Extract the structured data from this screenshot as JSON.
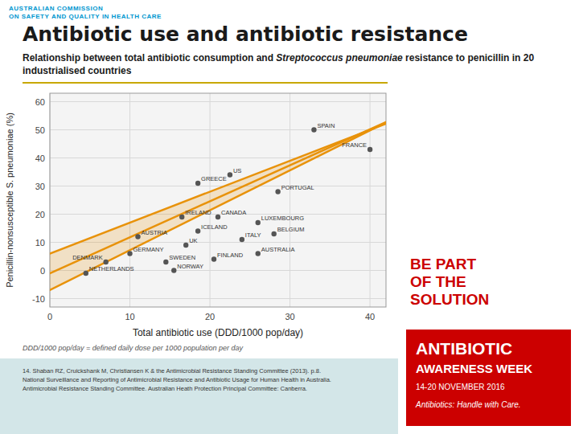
{
  "chart_data": {
    "type": "scatter",
    "title": "Antibiotic use and antibiotic resistance",
    "subtitle": [
      "Relationship between total antibiotic consumption and ",
      "Streptococcus pneumoniae",
      " resistance to penicillin in 20 industrialised countries"
    ],
    "xlabel": "Total antibiotic use (DDD/1000 pop/day)",
    "ylabel": "Penicillin-nonsusceptible S. pneumoniae (%)",
    "xlim": [
      0,
      42
    ],
    "ylim": [
      -13,
      63
    ],
    "xticks": [
      0,
      10,
      20,
      30,
      40
    ],
    "yticks": [
      -10,
      0,
      10,
      20,
      30,
      40,
      50,
      60
    ],
    "grid": true,
    "series": [
      {
        "type": "scatter",
        "color": "#555555",
        "x": [
          4.5,
          7.0,
          10.0,
          11.0,
          14.5,
          15.5,
          17.0,
          16.5,
          18.5,
          20.5,
          21.0,
          18.5,
          22.5,
          24.0,
          26.0,
          26.0,
          28.0,
          28.5,
          33.0,
          40.0
        ],
        "values": [
          -1,
          3,
          6,
          12,
          3,
          0,
          9,
          19,
          14,
          4,
          19,
          31,
          34,
          11,
          17,
          6,
          13,
          28,
          50,
          43
        ],
        "labels": [
          "NETHERLANDS",
          "DENMARK",
          "GERMANY",
          "AUSTRIA",
          "SWEDEN",
          "NORWAY",
          "UK",
          "IRELAND",
          "ICELAND",
          "FINLAND",
          "CANADA",
          "GREECE",
          "US",
          "ITALY",
          "LUXEMBOURG",
          "AUSTRALIA",
          "BELGIUM",
          "PORTUGAL",
          "SPAIN",
          "FRANCE"
        ]
      },
      {
        "type": "line",
        "color": "#E8920A",
        "x": [
          0,
          42
        ],
        "values": [
          -7,
          52.64
        ]
      },
      {
        "type": "line",
        "color": "#E8920A",
        "x": [
          0,
          42
        ],
        "values": [
          -1,
          52.76
        ]
      },
      {
        "type": "line",
        "color": "#E8920A",
        "x": [
          0,
          42
        ],
        "values": [
          6,
          52.2
        ]
      }
    ],
    "annotations": [
      "AUSTRALIAN COMMISSION",
      "ON SAFETY AND QUALITY IN HEALTH CARE",
      "DDD/1000 pop/day = defined daily dose per 1000 population per day",
      "14. Shaban RZ, Cruickshank M, Christiansen K & the Antimicrobial Resistance Standing Committee (2013). p.8.\nNational Surveillance and Reporting of Antimicrobial Resistance and Antibiotic Usage for Human Health in Australia.\nAntimicrobial Resistance Standing Committee. Australian Heath Protection Principal Committee: Canberra.",
      "ANTIBIOTIC",
      "AWARENESS WEEK",
      "14-20 NOVEMBER 2016",
      "Antibiotics: Handle with Care.",
      "BE PART\nOF THE\nSOLUTION"
    ]
  }
}
